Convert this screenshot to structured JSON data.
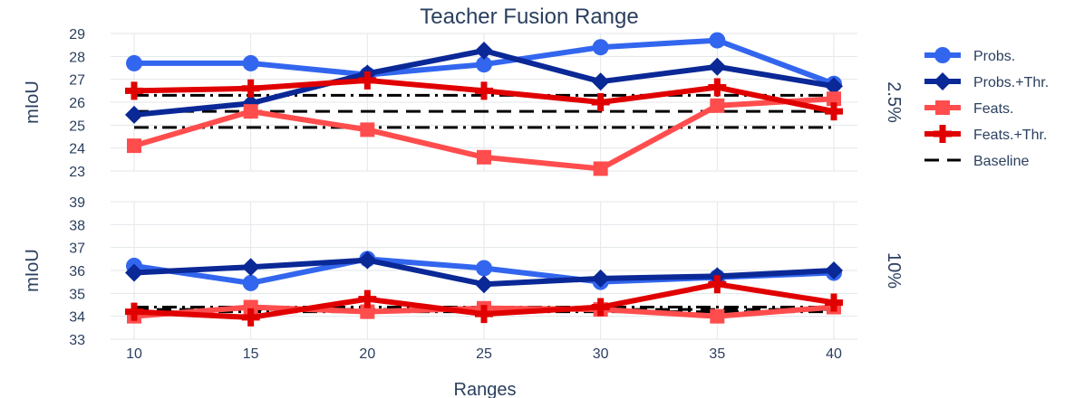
{
  "chart_data": {
    "type": "line",
    "title": "Teacher Fusion Range",
    "xlabel": "Ranges",
    "x": [
      10,
      15,
      20,
      25,
      30,
      35,
      40
    ],
    "legend_position": "right",
    "grid": true,
    "legend": [
      {
        "name": "Probs.",
        "color": "#3366ee",
        "marker": "circle",
        "dash": "solid"
      },
      {
        "name": "Probs.+Thr.",
        "color": "#0a2896",
        "marker": "diamond",
        "dash": "solid"
      },
      {
        "name": "Feats.",
        "color": "#ff4d4d",
        "marker": "square",
        "dash": "solid"
      },
      {
        "name": "Feats.+Thr.",
        "color": "#e00000",
        "marker": "cross",
        "dash": "solid"
      },
      {
        "name": "Baseline",
        "color": "#000000",
        "marker": "none",
        "dash": "dash"
      }
    ],
    "panels": [
      {
        "right_label": "2.5%",
        "ylabel": "mIoU",
        "ylim": [
          23,
          29
        ],
        "yticks": [
          23,
          24,
          25,
          26,
          27,
          28,
          29
        ],
        "series": [
          {
            "name": "Probs.",
            "values": [
              27.7,
              27.7,
              27.2,
              27.65,
              28.4,
              28.7,
              26.8
            ]
          },
          {
            "name": "Probs.+Thr.",
            "values": [
              25.45,
              25.95,
              27.25,
              28.25,
              26.9,
              27.55,
              26.7
            ]
          },
          {
            "name": "Feats.",
            "values": [
              24.1,
              25.6,
              24.8,
              23.6,
              23.1,
              25.85,
              26.15
            ]
          },
          {
            "name": "Feats.+Thr.",
            "values": [
              26.5,
              26.6,
              26.95,
              26.5,
              26.0,
              26.65,
              25.6
            ]
          }
        ],
        "baselines": [
          {
            "name": "Baseline",
            "dash": "dash",
            "value": 25.6
          },
          {
            "dash": "dashdot",
            "value": 26.3
          },
          {
            "dash": "dashdot",
            "value": 24.9
          }
        ]
      },
      {
        "right_label": "10%",
        "ylabel": "mIoU",
        "ylim": [
          33,
          39
        ],
        "yticks": [
          33,
          34,
          35,
          36,
          37,
          38,
          39
        ],
        "series": [
          {
            "name": "Probs.",
            "values": [
              36.2,
              35.45,
              36.5,
              36.1,
              35.5,
              35.7,
              35.9
            ]
          },
          {
            "name": "Probs.+Thr.",
            "values": [
              35.9,
              36.15,
              36.45,
              35.4,
              35.65,
              35.75,
              36.0
            ]
          },
          {
            "name": "Feats.",
            "values": [
              34.0,
              34.4,
              34.2,
              34.35,
              34.3,
              34.0,
              34.4
            ]
          },
          {
            "name": "Feats.+Thr.",
            "values": [
              34.2,
              33.95,
              34.75,
              34.1,
              34.4,
              35.4,
              34.6
            ]
          }
        ],
        "baselines": [
          {
            "name": "Baseline",
            "dash": "dash",
            "value": 34.3
          },
          {
            "dash": "dashdot",
            "value": 34.4
          },
          {
            "dash": "dashdot",
            "value": 34.2
          }
        ]
      }
    ]
  }
}
